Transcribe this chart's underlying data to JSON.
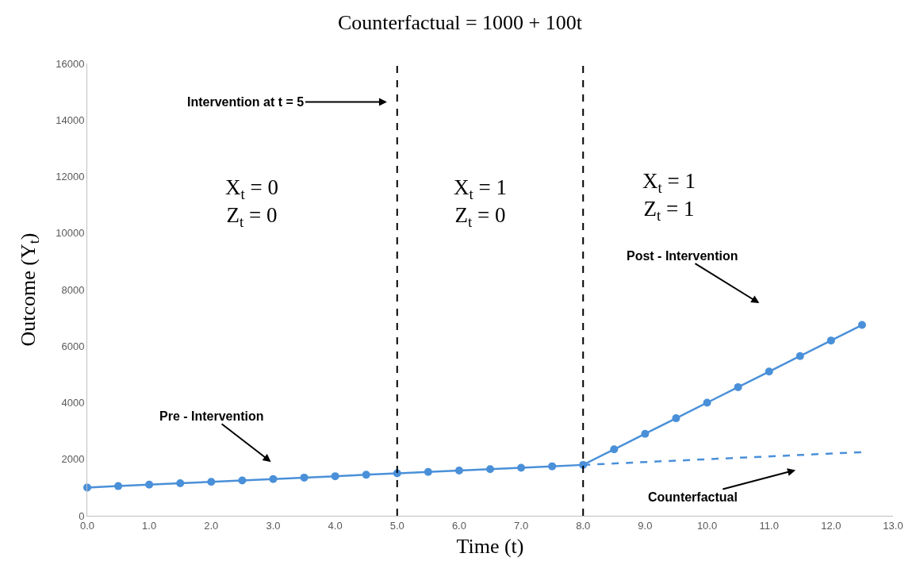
{
  "chart_data": {
    "type": "line",
    "title": "Counterfactual = 1000 + 100t",
    "xlabel": "Time (t)",
    "ylabel": "Outcome (Y$_{t}$)",
    "xlim": [
      0,
      13
    ],
    "xticks": [
      {
        "value": 0,
        "label": "0.0"
      },
      {
        "value": 1,
        "label": "1.0"
      },
      {
        "value": 2,
        "label": "2.0"
      },
      {
        "value": 3,
        "label": "3.0"
      },
      {
        "value": 4,
        "label": "4.0"
      },
      {
        "value": 5,
        "label": "5.0"
      },
      {
        "value": 6,
        "label": "6.0"
      },
      {
        "value": 7,
        "label": "7.0"
      },
      {
        "value": 8,
        "label": "8.0"
      },
      {
        "value": 9,
        "label": "9.0"
      },
      {
        "value": 10,
        "label": "10.0"
      },
      {
        "value": 11,
        "label": "11.0"
      },
      {
        "value": 12,
        "label": "12.0"
      },
      {
        "value": 13,
        "label": "13.0"
      }
    ],
    "ylim": [
      0,
      16000
    ],
    "yticks": [
      0,
      2000,
      4000,
      6000,
      8000,
      10000,
      12000,
      14000,
      16000
    ],
    "grid": false,
    "series": [
      {
        "color": "#4a90d9",
        "marker": "circle",
        "line_style": "solid",
        "x": [
          0,
          0.5,
          1,
          1.5,
          2,
          2.5,
          3,
          3.5,
          4,
          4.5,
          5,
          5.5,
          6,
          6.5,
          7,
          7.5,
          8,
          8.5,
          9,
          9.5,
          10,
          10.5,
          11,
          11.5,
          12,
          12.5
        ],
        "values": [
          1000,
          1050,
          1100,
          1150,
          1200,
          1250,
          1300,
          1350,
          1400,
          1450,
          1500,
          1550,
          1600,
          1650,
          1700,
          1750,
          1800,
          2350,
          2900,
          3450,
          4000,
          4550,
          5100,
          5650,
          6200,
          6750
        ]
      },
      {
        "color": "#4a90d9",
        "marker": "none",
        "line_style": "dashed",
        "x": [
          8,
          12.5
        ],
        "values": [
          1800,
          2250
        ]
      }
    ],
    "ref_lines": [
      {
        "axis": "x",
        "value": 5,
        "color": "#000000",
        "line_style": "dashed"
      },
      {
        "axis": "x",
        "value": 8,
        "color": "#000000",
        "line_style": "dashed"
      }
    ],
    "annotations": [
      "Intervention at t = 5",
      "Pre - Intervention",
      "Post - Intervention",
      "Counterfactual",
      "X$_{t}$ = 0\nZ$_{t}$ = 0",
      "X$_{t}$ = 1\nZ$_{t}$ = 0",
      "X$_{t}$ = 1\nZ$_{t}$ = 1"
    ]
  }
}
